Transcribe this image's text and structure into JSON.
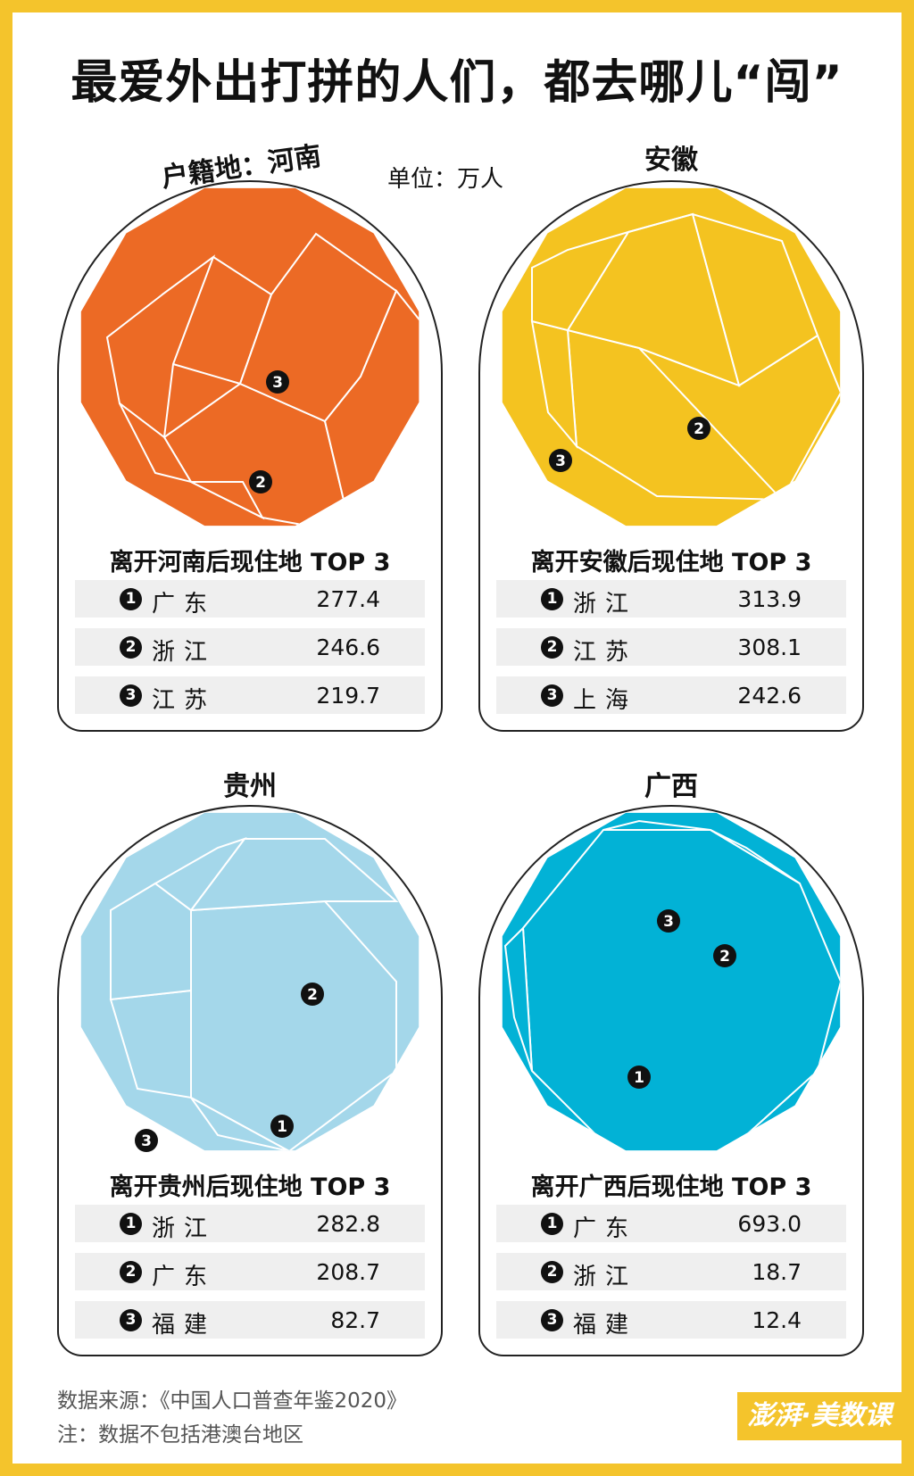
{
  "title": "最爱外出打拼的人们，都去哪儿“闯”",
  "unit": "单位：万人",
  "chart_data": [
    {
      "type": "treemap",
      "title": "户籍地：河南",
      "table_title": "离开河南后现住地 TOP 3",
      "color": "#ec6a25",
      "top3": [
        {
          "rank": "1",
          "name": "广东",
          "value": 277.4
        },
        {
          "rank": "2",
          "name": "浙江",
          "value": 246.6
        },
        {
          "rank": "3",
          "name": "江苏",
          "value": 219.7
        }
      ]
    },
    {
      "type": "treemap",
      "title": "安徽",
      "table_title": "离开安徽后现住地 TOP 3",
      "color": "#f4c320",
      "top3": [
        {
          "rank": "1",
          "name": "浙江",
          "value": 313.9
        },
        {
          "rank": "2",
          "name": "江苏",
          "value": 308.1
        },
        {
          "rank": "3",
          "name": "上海",
          "value": 242.6
        }
      ]
    },
    {
      "type": "treemap",
      "title": "贵州",
      "table_title": "离开贵州后现住地 TOP 3",
      "color": "#a4d7ea",
      "top3": [
        {
          "rank": "1",
          "name": "浙江",
          "value": 282.8
        },
        {
          "rank": "2",
          "name": "广东",
          "value": 208.7
        },
        {
          "rank": "3",
          "name": "福建",
          "value": 82.7
        }
      ]
    },
    {
      "type": "treemap",
      "title": "广西",
      "table_title": "离开广西后现住地 TOP 3",
      "color": "#02b2d6",
      "top3": [
        {
          "rank": "1",
          "name": "广东",
          "value": 693.0
        },
        {
          "rank": "2",
          "name": "浙江",
          "value": 18.7
        },
        {
          "rank": "3",
          "name": "福建",
          "value": 12.4
        }
      ]
    }
  ],
  "footer": {
    "source": "数据来源：《中国人口普查年鉴2020》",
    "note": "注：数据不包括港澳台地区"
  },
  "logo": "澎湃·美数课"
}
